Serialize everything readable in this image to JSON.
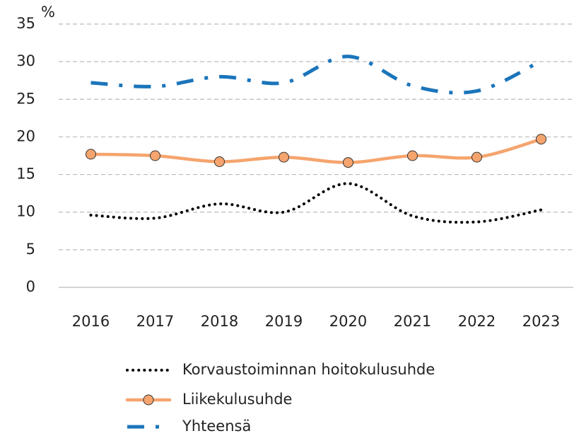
{
  "chart_data": {
    "type": "line",
    "unit_label": "%",
    "categories": [
      "2016",
      "2017",
      "2018",
      "2019",
      "2020",
      "2021",
      "2022",
      "2023"
    ],
    "series": [
      {
        "name": "Korvaustoiminnan hoitokulusuhde",
        "color": "#000000",
        "style": "dotted",
        "values": [
          9.6,
          9.2,
          11.1,
          10.0,
          13.8,
          9.5,
          8.7,
          10.3
        ]
      },
      {
        "name": "Liikekulusuhde",
        "color": "#f5a46e",
        "style": "solid",
        "marker": true,
        "values": [
          17.7,
          17.5,
          16.7,
          17.3,
          16.6,
          17.5,
          17.3,
          19.7
        ]
      },
      {
        "name": "Yhteensä",
        "color": "#1b75bb",
        "style": "dashdot",
        "values": [
          27.2,
          26.7,
          28.0,
          27.2,
          30.7,
          26.8,
          26.1,
          30.1
        ]
      }
    ],
    "ylim": [
      0,
      35
    ],
    "yticks": [
      0,
      5,
      10,
      15,
      20,
      25,
      30,
      35
    ],
    "grid": true
  }
}
